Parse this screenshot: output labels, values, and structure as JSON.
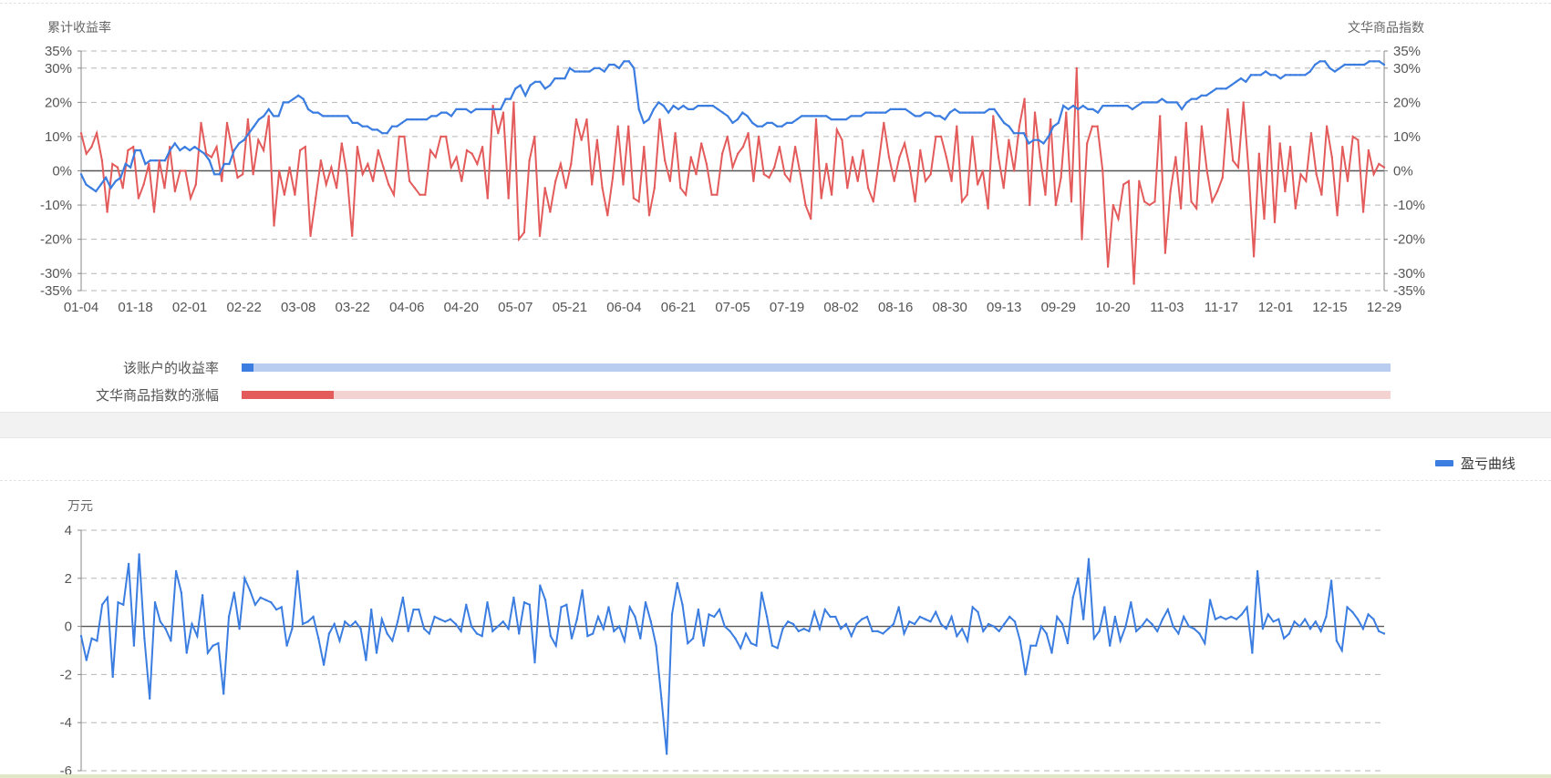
{
  "colors": {
    "account": "#3b7de0",
    "index": "#e35b5b",
    "account_light": "#b8cdf0",
    "index_light": "#f5d2d2",
    "pnl": "#3b7de0"
  },
  "chart_data": [
    {
      "type": "line",
      "y_left_label": "累计收益率",
      "y_right_label": "文华商品指数",
      "ylim": [
        -35,
        35
      ],
      "y_ticks": [
        "35%",
        "30%",
        "20%",
        "10%",
        "0%",
        "-10%",
        "-20%",
        "-30%",
        "-35%"
      ],
      "y_tick_values": [
        35,
        30,
        20,
        10,
        0,
        -10,
        -20,
        -30,
        -35
      ],
      "x_ticks": [
        "01-04",
        "01-18",
        "02-01",
        "02-22",
        "03-08",
        "03-22",
        "04-06",
        "04-20",
        "05-07",
        "05-21",
        "06-04",
        "06-21",
        "07-05",
        "07-19",
        "08-02",
        "08-16",
        "08-30",
        "09-13",
        "09-29",
        "10-20",
        "11-03",
        "11-17",
        "12-01",
        "12-15",
        "12-29"
      ],
      "grid": true,
      "series": [
        {
          "name": "该账户的收益率",
          "color": "#3b7de0",
          "values": [
            -1,
            -4,
            -5,
            -6,
            -4,
            -2,
            -5,
            -3,
            -2,
            2,
            1,
            6,
            6,
            2,
            3,
            3,
            3,
            3,
            6,
            8,
            6,
            7,
            6,
            7,
            6,
            5,
            3,
            -1,
            -1,
            2,
            2,
            6,
            8,
            9,
            11,
            13,
            15,
            16,
            18,
            16,
            16,
            20,
            20,
            21,
            22,
            21,
            18,
            17,
            17,
            16,
            16,
            16,
            16,
            16,
            16,
            14,
            14,
            13,
            13,
            12,
            12,
            11,
            11,
            13,
            13,
            14,
            15,
            15,
            15,
            15,
            15,
            16,
            16,
            17,
            17,
            16,
            18,
            18,
            18,
            17,
            18,
            18,
            18,
            18,
            18,
            18,
            21,
            21,
            24,
            25,
            22,
            25,
            26,
            26,
            24,
            25,
            27,
            27,
            27,
            30,
            29,
            29,
            29,
            29,
            30,
            30,
            29,
            31,
            31,
            30,
            32,
            32,
            30,
            18,
            14,
            15,
            18,
            20,
            19,
            17,
            19,
            18,
            19,
            18,
            18,
            19,
            19,
            19,
            19,
            18,
            17,
            16,
            14,
            15,
            17,
            16,
            14,
            13,
            13,
            14,
            14,
            13,
            13,
            14,
            14,
            15,
            16,
            16,
            16,
            16,
            16,
            16,
            15,
            15,
            15,
            15,
            16,
            16,
            16,
            17,
            17,
            17,
            17,
            17,
            18,
            18,
            18,
            18,
            17,
            16,
            16,
            17,
            17,
            16,
            16,
            15,
            17,
            18,
            17,
            17,
            17,
            17,
            17,
            17,
            18,
            18,
            16,
            14,
            13,
            11,
            11,
            11,
            8,
            9,
            9,
            8,
            10,
            13,
            14,
            19,
            18,
            19,
            18,
            19,
            18,
            18,
            17,
            19,
            19,
            19,
            19,
            19,
            19,
            18,
            19,
            20,
            20,
            20,
            20,
            21,
            20,
            20,
            20,
            18,
            20,
            21,
            21,
            22,
            22,
            23,
            24,
            24,
            24,
            25,
            26,
            27,
            26,
            28,
            28,
            28,
            29,
            28,
            28,
            27,
            28,
            28,
            28,
            28,
            28,
            29,
            31,
            32,
            32,
            30,
            29,
            30,
            31,
            31,
            31,
            31,
            31,
            32,
            32,
            32,
            31
          ]
        },
        {
          "name": "文华商品指数的涨幅",
          "color": "#e35b5b",
          "values": [
            11,
            5,
            7,
            11,
            3,
            -12,
            2,
            1,
            -5,
            6,
            7,
            -8,
            -4,
            2,
            -12,
            3,
            -5,
            7,
            -6,
            0,
            0,
            -8,
            -4,
            14,
            5,
            4,
            7,
            -3,
            14,
            6,
            -2,
            -1,
            15,
            -1,
            9,
            6,
            16,
            -16,
            0,
            -7,
            1,
            -7,
            6,
            7,
            -19,
            -8,
            3,
            -4,
            1,
            -5,
            8,
            -1,
            -19,
            7,
            -1,
            2,
            -3,
            6,
            1,
            -4,
            -7,
            10,
            10,
            -3,
            -5,
            -7,
            -7,
            6,
            4,
            10,
            10,
            1,
            4,
            -3,
            6,
            5,
            2,
            7,
            -8,
            19,
            11,
            17,
            -8,
            20,
            -20,
            -18,
            3,
            10,
            -19,
            -5,
            -12,
            -3,
            2,
            -5,
            2,
            15,
            9,
            15,
            -4,
            9,
            -5,
            -13,
            -2,
            13,
            -4,
            13,
            -8,
            -9,
            7,
            -13,
            -5,
            15,
            3,
            -3,
            11,
            -5,
            -7,
            4,
            -1,
            8,
            2,
            -7,
            -7,
            5,
            10,
            1,
            5,
            7,
            11,
            -3,
            10,
            -1,
            -2,
            1,
            7,
            -1,
            -3,
            7,
            -1,
            -10,
            -14,
            15,
            -8,
            2,
            -7,
            12,
            9,
            -5,
            4,
            -3,
            6,
            -5,
            -9,
            2,
            14,
            4,
            -3,
            4,
            8,
            1,
            -9,
            6,
            -3,
            -1,
            10,
            10,
            4,
            -3,
            13,
            -9,
            -7,
            10,
            -4,
            0,
            -11,
            16,
            4,
            -5,
            9,
            0,
            13,
            21,
            -10,
            17,
            4,
            -7,
            15,
            -10,
            -2,
            17,
            -9,
            30,
            -20,
            8,
            13,
            13,
            0,
            -28,
            -10,
            -14,
            -4,
            -3,
            -33,
            -3,
            -9,
            -10,
            -9,
            16,
            -24,
            -6,
            4,
            -11,
            14,
            -9,
            -11,
            13,
            0,
            -9,
            -6,
            -2,
            18,
            3,
            1,
            20,
            0,
            -25,
            5,
            -14,
            13,
            -15,
            8,
            -6,
            7,
            -11,
            -1,
            -3,
            11,
            -1,
            -7,
            13,
            4,
            -13,
            7,
            -3,
            10,
            9,
            -12,
            6,
            -1,
            2,
            1
          ]
        }
      ]
    },
    {
      "type": "line",
      "y_label": "万元",
      "ylim": [
        -6,
        4
      ],
      "y_ticks": [
        "4",
        "2",
        "0",
        "-2",
        "-4",
        "-6"
      ],
      "y_tick_values": [
        4,
        2,
        0,
        -2,
        -4,
        -6
      ],
      "grid": true,
      "legend": "top-right",
      "series": [
        {
          "name": "盈亏曲线",
          "color": "#3b7de0",
          "values": [
            -0.4,
            -1.4,
            -0.5,
            -0.6,
            0.9,
            1.2,
            -2.1,
            1.0,
            0.9,
            2.6,
            -0.8,
            3.0,
            -0.5,
            -3.0,
            1.0,
            0.2,
            -0.1,
            -0.6,
            2.3,
            1.4,
            -1.1,
            0.1,
            -0.4,
            1.3,
            -1.1,
            -0.8,
            -0.7,
            -2.8,
            0.4,
            1.4,
            -0.1,
            2.0,
            1.5,
            0.9,
            1.2,
            1.1,
            1.0,
            0.7,
            0.8,
            -0.8,
            -0.1,
            2.3,
            0.1,
            0.2,
            0.4,
            -0.5,
            -1.6,
            -0.3,
            0.1,
            -0.6,
            0.2,
            0.0,
            0.2,
            -0.1,
            -1.4,
            0.7,
            -1.1,
            0.3,
            -0.3,
            -0.6,
            0.2,
            1.2,
            -0.2,
            0.7,
            0.7,
            -0.1,
            -0.3,
            0.4,
            0.3,
            0.2,
            0.3,
            0.1,
            -0.2,
            0.9,
            0.0,
            -0.3,
            -0.4,
            1.0,
            -0.2,
            0.0,
            0.2,
            -0.1,
            1.2,
            -0.3,
            1.0,
            0.9,
            -1.5,
            1.7,
            1.1,
            -0.4,
            -0.8,
            0.8,
            0.9,
            -0.5,
            0.3,
            1.5,
            -0.4,
            -0.3,
            0.4,
            -0.1,
            0.8,
            -0.2,
            0.0,
            -0.6,
            0.8,
            0.4,
            -0.5,
            1.0,
            0.2,
            -0.8,
            -3.0,
            -5.3,
            0.5,
            1.8,
            0.9,
            -0.7,
            -0.5,
            0.7,
            -0.8,
            0.5,
            0.4,
            0.7,
            0.0,
            -0.2,
            -0.5,
            -0.9,
            -0.3,
            -0.7,
            -0.8,
            1.4,
            0.4,
            -0.8,
            -0.9,
            -0.1,
            0.2,
            0.1,
            -0.2,
            -0.1,
            -0.2,
            0.6,
            -0.1,
            0.7,
            0.4,
            0.4,
            -0.1,
            0.1,
            -0.4,
            0.1,
            0.3,
            0.4,
            -0.2,
            -0.2,
            -0.3,
            -0.1,
            0.1,
            0.8,
            -0.3,
            0.2,
            0.1,
            0.4,
            0.3,
            0.2,
            0.6,
            0.1,
            -0.1,
            0.4,
            -0.4,
            -0.1,
            -0.6,
            0.8,
            0.6,
            -0.2,
            0.1,
            0.0,
            -0.2,
            0.1,
            0.4,
            0.2,
            -0.6,
            -2.0,
            -0.8,
            -0.8,
            0.0,
            -0.3,
            -1.1,
            0.4,
            0.1,
            -0.7,
            1.2,
            2.0,
            0.3,
            2.8,
            -0.5,
            -0.2,
            0.8,
            -0.8,
            0.4,
            -0.6,
            0.0,
            1.0,
            -0.2,
            0.0,
            0.3,
            0.1,
            -0.2,
            0.3,
            0.7,
            0.0,
            -0.3,
            0.4,
            0.0,
            -0.1,
            -0.3,
            -0.7,
            1.1,
            0.3,
            0.4,
            0.3,
            0.4,
            0.3,
            0.5,
            0.8,
            -1.1,
            2.3,
            -0.1,
            0.5,
            0.2,
            0.3,
            -0.5,
            -0.3,
            0.2,
            0.0,
            0.3,
            -0.1,
            0.2,
            -0.2,
            0.4,
            1.9,
            -0.6,
            -1.0,
            0.8,
            0.6,
            0.3,
            -0.1,
            0.5,
            0.3,
            -0.2,
            -0.3
          ]
        }
      ]
    }
  ],
  "comparison": {
    "rows": [
      {
        "label": "该账户的收益率",
        "value_pct": 1
      },
      {
        "label": "文华商品指数的涨幅",
        "value_pct": 8
      }
    ]
  }
}
